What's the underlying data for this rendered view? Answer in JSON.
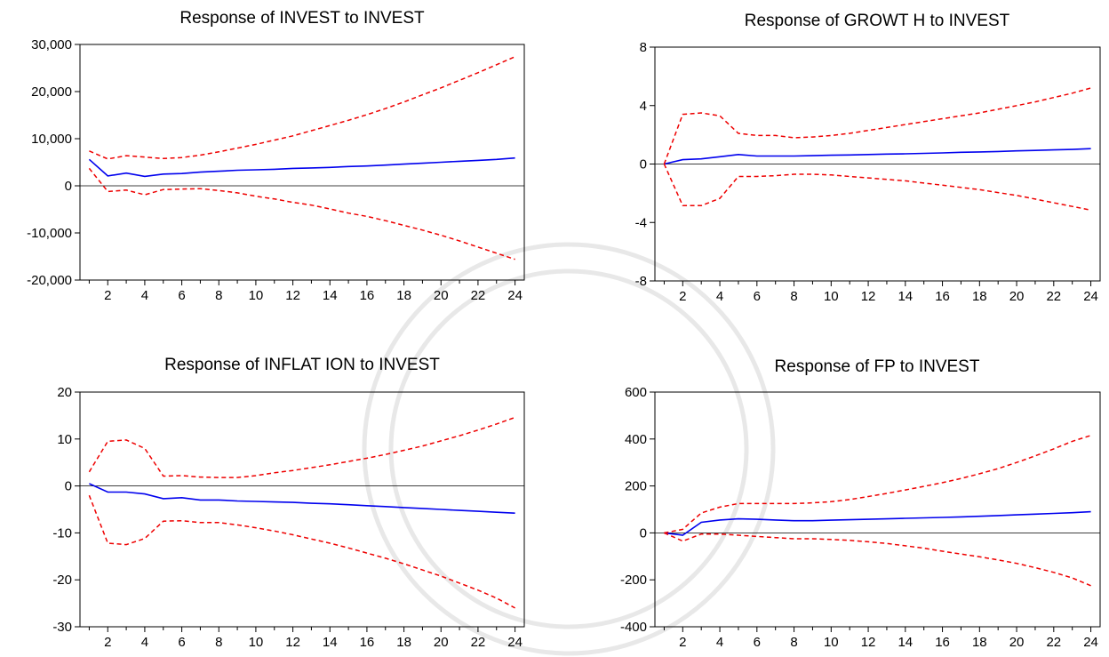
{
  "chart_data": [
    {
      "type": "line",
      "title": "Response of INVEST to INVEST",
      "x": [
        1,
        2,
        3,
        4,
        5,
        6,
        7,
        8,
        9,
        10,
        11,
        12,
        13,
        14,
        15,
        16,
        17,
        18,
        19,
        20,
        21,
        22,
        23,
        24
      ],
      "x_tick_labels": [
        "2",
        "4",
        "6",
        "8",
        "10",
        "12",
        "14",
        "16",
        "18",
        "20",
        "22",
        "24"
      ],
      "ylim": [
        -20000,
        30000
      ],
      "y_tick_values": [
        -20000,
        -10000,
        0,
        10000,
        20000,
        30000
      ],
      "y_tick_labels": [
        "-20,000",
        "-10,000",
        "0",
        "10,000",
        "20,000",
        "30,000"
      ],
      "series": [
        {
          "role": "response",
          "color": "#0000ee",
          "values": [
            5600,
            2100,
            2700,
            2000,
            2500,
            2600,
            2900,
            3100,
            3300,
            3400,
            3500,
            3700,
            3800,
            3900,
            4100,
            4200,
            4400,
            4600,
            4800,
            5000,
            5200,
            5400,
            5600,
            5900
          ]
        },
        {
          "role": "upper",
          "color": "#ee0000",
          "values": [
            7400,
            5700,
            6400,
            6100,
            5800,
            6000,
            6500,
            7200,
            8000,
            8800,
            9700,
            10600,
            11700,
            12800,
            13900,
            15100,
            16400,
            17800,
            19300,
            20800,
            22400,
            24000,
            25700,
            27400
          ]
        },
        {
          "role": "lower",
          "color": "#ee0000",
          "values": [
            3700,
            -1200,
            -900,
            -1900,
            -800,
            -700,
            -600,
            -1000,
            -1500,
            -2200,
            -2800,
            -3500,
            -4100,
            -4900,
            -5800,
            -6500,
            -7400,
            -8400,
            -9400,
            -10500,
            -11700,
            -13000,
            -14300,
            -15600
          ]
        }
      ]
    },
    {
      "type": "line",
      "title": "Response of GROWT H to INVEST",
      "x": [
        1,
        2,
        3,
        4,
        5,
        6,
        7,
        8,
        9,
        10,
        11,
        12,
        13,
        14,
        15,
        16,
        17,
        18,
        19,
        20,
        21,
        22,
        23,
        24
      ],
      "x_tick_labels": [
        "2",
        "4",
        "6",
        "8",
        "10",
        "12",
        "14",
        "16",
        "18",
        "20",
        "22",
        "24"
      ],
      "ylim": [
        -8,
        8
      ],
      "y_tick_values": [
        -8,
        -4,
        0,
        4,
        8
      ],
      "y_tick_labels": [
        "-8",
        "-4",
        "0",
        "4",
        "8"
      ],
      "series": [
        {
          "role": "response",
          "color": "#0000ee",
          "values": [
            0,
            0.3,
            0.35,
            0.5,
            0.65,
            0.55,
            0.55,
            0.55,
            0.57,
            0.6,
            0.62,
            0.65,
            0.68,
            0.7,
            0.73,
            0.76,
            0.8,
            0.83,
            0.86,
            0.9,
            0.93,
            0.97,
            1.0,
            1.05
          ]
        },
        {
          "role": "upper",
          "color": "#ee0000",
          "values": [
            0,
            3.4,
            3.5,
            3.3,
            2.1,
            1.95,
            1.95,
            1.8,
            1.85,
            1.95,
            2.1,
            2.3,
            2.5,
            2.7,
            2.9,
            3.1,
            3.3,
            3.5,
            3.75,
            4.0,
            4.25,
            4.55,
            4.85,
            5.2
          ]
        },
        {
          "role": "lower",
          "color": "#ee0000",
          "values": [
            0,
            -2.85,
            -2.85,
            -2.35,
            -0.85,
            -0.85,
            -0.8,
            -0.7,
            -0.7,
            -0.75,
            -0.85,
            -0.95,
            -1.05,
            -1.15,
            -1.3,
            -1.45,
            -1.6,
            -1.75,
            -1.95,
            -2.15,
            -2.4,
            -2.65,
            -2.9,
            -3.15
          ]
        }
      ]
    },
    {
      "type": "line",
      "title": "Response of INFLAT ION to INVEST",
      "x": [
        1,
        2,
        3,
        4,
        5,
        6,
        7,
        8,
        9,
        10,
        11,
        12,
        13,
        14,
        15,
        16,
        17,
        18,
        19,
        20,
        21,
        22,
        23,
        24
      ],
      "x_tick_labels": [
        "2",
        "4",
        "6",
        "8",
        "10",
        "12",
        "14",
        "16",
        "18",
        "20",
        "22",
        "24"
      ],
      "ylim": [
        -30,
        20
      ],
      "y_tick_values": [
        -30,
        -20,
        -10,
        0,
        10,
        20
      ],
      "y_tick_labels": [
        "-30",
        "-20",
        "-10",
        "0",
        "10",
        "20"
      ],
      "series": [
        {
          "role": "response",
          "color": "#0000ee",
          "values": [
            0.5,
            -1.3,
            -1.3,
            -1.7,
            -2.7,
            -2.5,
            -3.0,
            -3.0,
            -3.2,
            -3.3,
            -3.4,
            -3.5,
            -3.7,
            -3.8,
            -4.0,
            -4.2,
            -4.4,
            -4.6,
            -4.8,
            -5.0,
            -5.2,
            -5.4,
            -5.6,
            -5.8
          ]
        },
        {
          "role": "upper",
          "color": "#ee0000",
          "values": [
            3.0,
            9.5,
            9.8,
            8.0,
            2.1,
            2.2,
            1.9,
            1.8,
            1.8,
            2.2,
            2.8,
            3.3,
            3.9,
            4.5,
            5.2,
            5.9,
            6.7,
            7.6,
            8.5,
            9.6,
            10.7,
            11.9,
            13.2,
            14.6
          ]
        },
        {
          "role": "lower",
          "color": "#ee0000",
          "values": [
            -2.0,
            -12.2,
            -12.5,
            -11.2,
            -7.5,
            -7.4,
            -7.8,
            -7.8,
            -8.3,
            -8.9,
            -9.6,
            -10.4,
            -11.3,
            -12.2,
            -13.2,
            -14.3,
            -15.4,
            -16.6,
            -17.9,
            -19.2,
            -20.7,
            -22.2,
            -23.9,
            -26.0
          ]
        }
      ]
    },
    {
      "type": "line",
      "title": "Response of FP to INVEST",
      "x": [
        1,
        2,
        3,
        4,
        5,
        6,
        7,
        8,
        9,
        10,
        11,
        12,
        13,
        14,
        15,
        16,
        17,
        18,
        19,
        20,
        21,
        22,
        23,
        24
      ],
      "x_tick_labels": [
        "2",
        "4",
        "6",
        "8",
        "10",
        "12",
        "14",
        "16",
        "18",
        "20",
        "22",
        "24"
      ],
      "ylim": [
        -400,
        600
      ],
      "y_tick_values": [
        -400,
        -200,
        0,
        200,
        400,
        600
      ],
      "y_tick_labels": [
        "-400",
        "-200",
        "0",
        "200",
        "400",
        "600"
      ],
      "series": [
        {
          "role": "response",
          "color": "#0000ee",
          "values": [
            0,
            -10,
            45,
            55,
            60,
            58,
            55,
            52,
            52,
            54,
            56,
            58,
            60,
            62,
            64,
            66,
            68,
            71,
            74,
            77,
            80,
            83,
            86,
            90
          ]
        },
        {
          "role": "upper",
          "color": "#ee0000",
          "values": [
            0,
            15,
            85,
            110,
            125,
            125,
            125,
            125,
            128,
            133,
            142,
            155,
            168,
            183,
            198,
            214,
            232,
            252,
            274,
            300,
            328,
            358,
            390,
            415
          ]
        },
        {
          "role": "lower",
          "color": "#ee0000",
          "values": [
            0,
            -35,
            -5,
            -5,
            -10,
            -15,
            -20,
            -25,
            -25,
            -28,
            -32,
            -38,
            -45,
            -55,
            -65,
            -78,
            -90,
            -102,
            -115,
            -130,
            -148,
            -168,
            -192,
            -225
          ]
        }
      ]
    }
  ]
}
